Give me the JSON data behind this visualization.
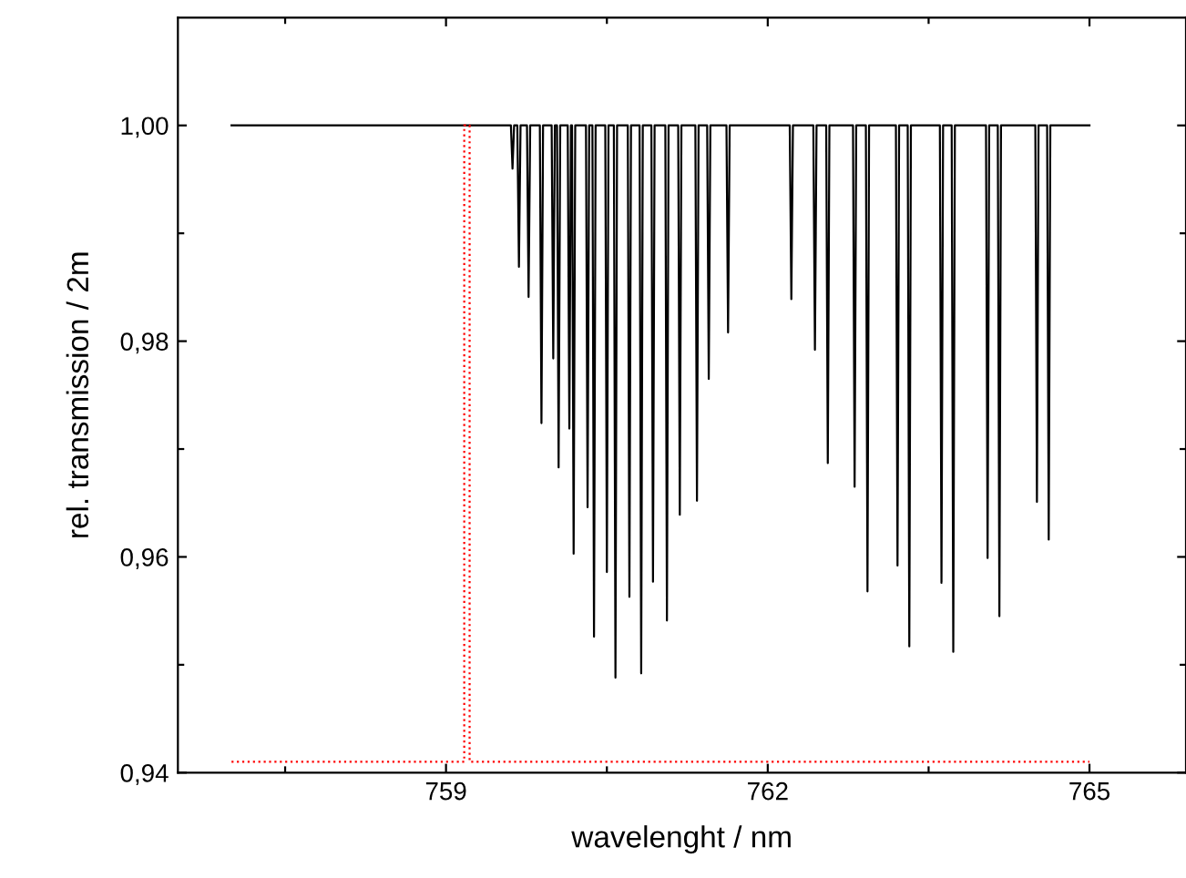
{
  "chart_data": {
    "type": "line",
    "xlabel": "wavelenght / nm",
    "ylabel": "rel. transmission / 2m",
    "xlim": [
      756.5,
      765.9
    ],
    "ylim": [
      0.94,
      1.01
    ],
    "xticks": [
      {
        "value": 757.5,
        "label": null
      },
      759,
      {
        "value": 760.5,
        "label": null
      },
      762,
      {
        "value": 763.5,
        "label": null
      },
      765
    ],
    "yticks": [
      {
        "value": 0.94,
        "label": "0,94"
      },
      {
        "value": 0.95,
        "label": null
      },
      {
        "value": 0.96,
        "label": "0,96"
      },
      {
        "value": 0.97,
        "label": null
      },
      {
        "value": 0.98,
        "label": "0,98"
      },
      {
        "value": 0.99,
        "label": null
      },
      {
        "value": 1.0,
        "label": "1,00"
      }
    ],
    "grid": false,
    "legend": false,
    "marker": "none",
    "series": [
      {
        "color": "#000000",
        "line_style": "solid",
        "x": [
          757.0,
          759.605,
          759.62,
          759.635,
          759.665,
          759.68,
          759.695,
          759.755,
          759.77,
          759.785,
          759.875,
          759.89,
          759.905,
          759.985,
          760.0,
          760.015,
          760.035,
          760.05,
          760.065,
          760.135,
          760.15,
          760.165,
          760.175,
          760.19,
          760.205,
          760.305,
          760.32,
          760.335,
          760.365,
          760.38,
          760.395,
          760.485,
          760.5,
          760.515,
          760.565,
          760.58,
          760.595,
          760.695,
          760.71,
          760.725,
          760.805,
          760.82,
          760.835,
          760.915,
          760.93,
          760.945,
          761.045,
          761.06,
          761.075,
          761.165,
          761.18,
          761.195,
          761.325,
          761.34,
          761.355,
          761.435,
          761.45,
          761.465,
          761.615,
          761.63,
          761.645,
          762.205,
          762.22,
          762.235,
          762.425,
          762.44,
          762.455,
          762.545,
          762.56,
          762.575,
          762.795,
          762.81,
          762.825,
          762.915,
          762.93,
          762.945,
          763.195,
          763.21,
          763.225,
          763.305,
          763.32,
          763.335,
          763.605,
          763.62,
          763.635,
          763.715,
          763.73,
          763.745,
          764.035,
          764.05,
          764.065,
          764.145,
          764.16,
          764.175,
          764.495,
          764.51,
          764.525,
          764.605,
          764.62,
          764.635,
          765.0
        ],
        "values": [
          1.0,
          1.0,
          0.996,
          1.0,
          1.0,
          0.9869,
          1.0,
          1.0,
          0.9841,
          1.0,
          1.0,
          0.9724,
          1.0,
          1.0,
          0.9784,
          1.0,
          1.0,
          0.9683,
          1.0,
          1.0,
          0.9719,
          1.0,
          1.0,
          0.9603,
          1.0,
          1.0,
          0.9646,
          1.0,
          1.0,
          0.9526,
          1.0,
          1.0,
          0.9586,
          1.0,
          1.0,
          0.9488,
          1.0,
          1.0,
          0.9563,
          1.0,
          1.0,
          0.9492,
          1.0,
          1.0,
          0.9577,
          1.0,
          1.0,
          0.9541,
          1.0,
          1.0,
          0.9639,
          1.0,
          1.0,
          0.9652,
          1.0,
          1.0,
          0.9765,
          1.0,
          1.0,
          0.9808,
          1.0,
          1.0,
          0.9839,
          1.0,
          1.0,
          0.9792,
          1.0,
          1.0,
          0.9687,
          1.0,
          1.0,
          0.9665,
          1.0,
          1.0,
          0.9568,
          1.0,
          1.0,
          0.9592,
          1.0,
          1.0,
          0.9517,
          1.0,
          1.0,
          0.9576,
          1.0,
          1.0,
          0.9512,
          1.0,
          1.0,
          0.9599,
          1.0,
          1.0,
          0.9545,
          1.0,
          1.0,
          0.9651,
          1.0,
          1.0,
          0.9616,
          1.0,
          1.0
        ]
      },
      {
        "color": "#ff0000",
        "line_style": "dotted",
        "x": [
          757.0,
          759.17,
          759.17,
          759.22,
          759.22,
          765.0
        ],
        "values": [
          0.941,
          0.941,
          1.0,
          1.0,
          0.941,
          0.941
        ]
      }
    ]
  }
}
